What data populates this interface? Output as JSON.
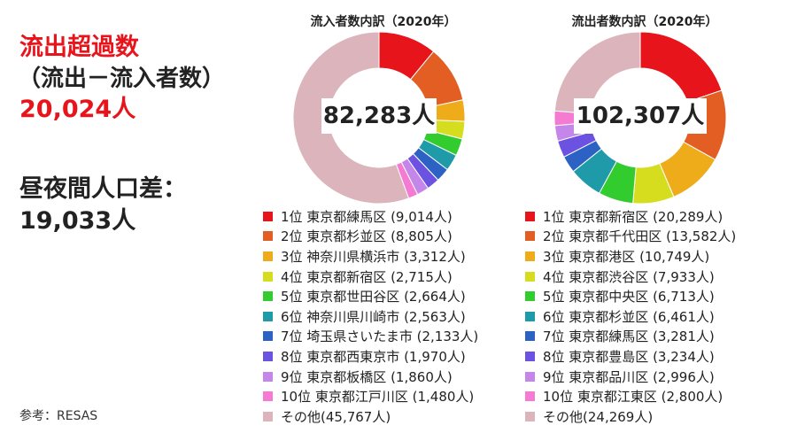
{
  "summary": {
    "excess_title": "流出超過数",
    "excess_formula": "（流出－流入者数）",
    "excess_value": "20,024人",
    "daynight_label": "昼夜間人口差：",
    "daynight_value": "19,033人"
  },
  "source": "参考：RESAS",
  "chart_data": [
    {
      "type": "pie",
      "donut": true,
      "title": "流入者数内訳（2020年）",
      "total_label": "82,283人",
      "legend_position": "bottom",
      "slices": [
        {
          "label": "1位 東京都練馬区 (9,014人)",
          "value": 9014,
          "color": "#e8141c"
        },
        {
          "label": "2位 東京都杉並区 (8,805人)",
          "value": 8805,
          "color": "#e25e22"
        },
        {
          "label": "3位 神奈川県横浜市 (3,312人)",
          "value": 3312,
          "color": "#eeab1a"
        },
        {
          "label": "4位 東京都新宿区 (2,715人)",
          "value": 2715,
          "color": "#d6dc1e"
        },
        {
          "label": "5位 東京都世田谷区 (2,664人)",
          "value": 2664,
          "color": "#33cc2f"
        },
        {
          "label": "6位 神奈川県川崎市 (2,563人)",
          "value": 2563,
          "color": "#1e9aa8"
        },
        {
          "label": "7位 埼玉県さいたま市 (2,133人)",
          "value": 2133,
          "color": "#2b62c4"
        },
        {
          "label": "8位 東京都西東京市 (1,970人)",
          "value": 1970,
          "color": "#6c52e0"
        },
        {
          "label": "9位 東京都板橋区 (1,860人)",
          "value": 1860,
          "color": "#c486e8"
        },
        {
          "label": "10位 東京都江戸川区 (1,480人)",
          "value": 1480,
          "color": "#f47ad2"
        },
        {
          "label": "その他(45,767人)",
          "value": 45767,
          "color": "#dcb4bc"
        }
      ]
    },
    {
      "type": "pie",
      "donut": true,
      "title": "流出者数内訳（2020年）",
      "total_label": "102,307人",
      "legend_position": "bottom",
      "slices": [
        {
          "label": "1位 東京都新宿区 (20,289人)",
          "value": 20289,
          "color": "#e8141c"
        },
        {
          "label": "2位 東京都千代田区 (13,582人)",
          "value": 13582,
          "color": "#e25e22"
        },
        {
          "label": "3位 東京都港区 (10,749人)",
          "value": 10749,
          "color": "#eeab1a"
        },
        {
          "label": "4位 東京都渋谷区 (7,933人)",
          "value": 7933,
          "color": "#d6dc1e"
        },
        {
          "label": "5位 東京都中央区 (6,713人)",
          "value": 6713,
          "color": "#33cc2f"
        },
        {
          "label": "6位 東京都杉並区 (6,461人)",
          "value": 6461,
          "color": "#1e9aa8"
        },
        {
          "label": "7位 東京都練馬区 (3,281人)",
          "value": 3281,
          "color": "#2b62c4"
        },
        {
          "label": "8位 東京都豊島区 (3,234人)",
          "value": 3234,
          "color": "#6c52e0"
        },
        {
          "label": "9位 東京都品川区 (2,996人)",
          "value": 2996,
          "color": "#c486e8"
        },
        {
          "label": "10位 東京都江東区 (2,800人)",
          "value": 2800,
          "color": "#f47ad2"
        },
        {
          "label": "その他(24,269人)",
          "value": 24269,
          "color": "#dcb4bc"
        }
      ]
    }
  ]
}
